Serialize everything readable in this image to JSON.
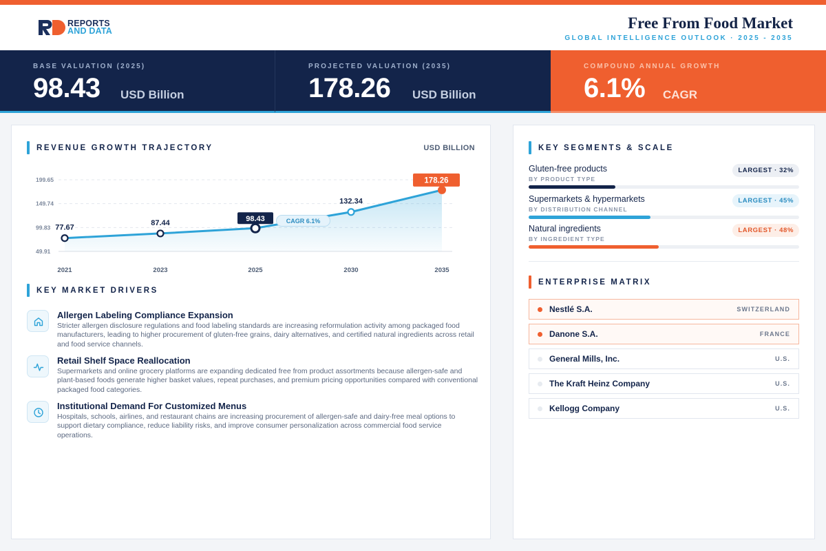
{
  "brand": {
    "line1": "REPORTS",
    "line2": "AND DATA",
    "mark_colors": [
      "#1b2f5c",
      "#ef5f2f"
    ]
  },
  "header": {
    "title": "Free From Food Market",
    "subtitle": "GLOBAL INTELLIGENCE OUTLOOK  ·  2025 - 2035"
  },
  "kpis": [
    {
      "label": "BASE VALUATION (2025)",
      "value": "98.43",
      "unit": "USD Billion"
    },
    {
      "label": "PROJECTED VALUATION (2035)",
      "value": "178.26",
      "unit": "USD Billion"
    },
    {
      "label": "COMPOUND ANNUAL GROWTH",
      "value": "6.1%",
      "unit": "CAGR"
    }
  ],
  "colors": {
    "navy": "#13244a",
    "accent_blue": "#2ea3d8",
    "accent_orange": "#ef5f2f"
  },
  "chart_section": {
    "title": "REVENUE GROWTH TRAJECTORY",
    "unit": "USD BILLION"
  },
  "chart_data": {
    "type": "area",
    "x": [
      "2021",
      "2023",
      "2025",
      "2030",
      "2035"
    ],
    "values": [
      77.67,
      87.44,
      98.43,
      132.34,
      178.26
    ],
    "value_labels": [
      "77.67",
      "87.44",
      "98.43",
      "132.34",
      "178.26"
    ],
    "yticks": [
      "199.65",
      "149.74",
      "99.83",
      "49.91"
    ],
    "ytick_values": [
      199.65,
      149.74,
      99.83,
      49.91
    ],
    "ylim": [
      49.91,
      199.65
    ],
    "annotation": "CAGR 6.1%",
    "highlighted": {
      "2025": "navy",
      "2035": "orange"
    },
    "grid": true,
    "title": "",
    "xlabel": "",
    "ylabel": ""
  },
  "drivers_section": {
    "title": "KEY MARKET DRIVERS",
    "items": [
      {
        "icon": "home-icon",
        "title": "Allergen Labeling Compliance Expansion",
        "desc": "Stricter allergen disclosure regulations and food labeling standards are increasing reformulation activity among packaged food manufacturers, leading to higher procurement of gluten-free grains, dairy alternatives, and certified natural ingredients across retail and food service channels."
      },
      {
        "icon": "activity-icon",
        "title": "Retail Shelf Space Reallocation",
        "desc": "Supermarkets and online grocery platforms are expanding dedicated free from product assortments because allergen-safe and plant-based foods generate higher basket values, repeat purchases, and premium pricing opportunities compared with conventional packaged food categories."
      },
      {
        "icon": "clock-icon",
        "title": "Institutional Demand For Customized Menus",
        "desc": "Hospitals, schools, airlines, and restaurant chains are increasing procurement of allergen-safe and dairy-free meal options to support dietary compliance, reduce liability risks, and improve consumer personalization across commercial food service operations."
      }
    ]
  },
  "segments_section": {
    "title": "KEY SEGMENTS & SCALE",
    "items": [
      {
        "name": "Gluten-free products",
        "sub": "BY PRODUCT TYPE",
        "badge": "LARGEST · 32%",
        "share": 32,
        "color": "#13244a",
        "badge_bg": "#eceff4",
        "badge_fg": "#13244a"
      },
      {
        "name": "Supermarkets & hypermarkets",
        "sub": "BY DISTRIBUTION CHANNEL",
        "badge": "LARGEST · 45%",
        "share": 45,
        "color": "#2ea3d8",
        "badge_bg": "#e7f4fb",
        "badge_fg": "#2a8cc0"
      },
      {
        "name": "Natural ingredients",
        "sub": "BY INGREDIENT TYPE",
        "badge": "LARGEST · 48%",
        "share": 48,
        "color": "#ef5f2f",
        "badge_bg": "#fdeee7",
        "badge_fg": "#e2582b"
      }
    ]
  },
  "enterprise_section": {
    "title": "ENTERPRISE MATRIX",
    "items": [
      {
        "name": "Nestlé S.A.",
        "country": "SWITZERLAND",
        "highlight": true
      },
      {
        "name": "Danone S.A.",
        "country": "FRANCE",
        "highlight": true
      },
      {
        "name": "General Mills, Inc.",
        "country": "U.S.",
        "highlight": false
      },
      {
        "name": "The Kraft Heinz Company",
        "country": "U.S.",
        "highlight": false
      },
      {
        "name": "Kellogg Company",
        "country": "U.S.",
        "highlight": false
      }
    ]
  }
}
